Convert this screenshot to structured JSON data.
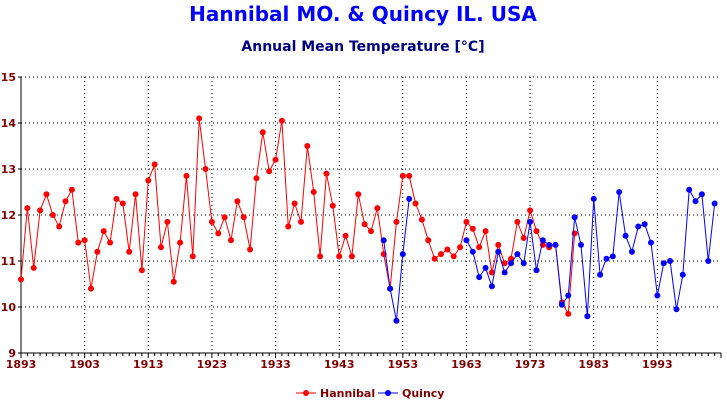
{
  "chart_data": {
    "type": "line",
    "title": "Hannibal MO. & Quincy IL. USA",
    "subtitle": "Annual Mean Temperature [°C]",
    "ylim": [
      9,
      15
    ],
    "yticks": [
      "9",
      "10",
      "11",
      "12",
      "13",
      "14",
      "15"
    ],
    "xlim": [
      1893,
      2003
    ],
    "xticks": [
      "1893",
      "1903",
      "1913",
      "1923",
      "1933",
      "1943",
      "1953",
      "1963",
      "1973",
      "1983",
      "1993"
    ],
    "grid": true,
    "legend_position": "bottom-center",
    "series": [
      {
        "name": "Hannibal",
        "color": "#ff0000",
        "x": [
          1893,
          1894,
          1895,
          1896,
          1897,
          1898,
          1899,
          1900,
          1901,
          1902,
          1903,
          1904,
          1905,
          1906,
          1907,
          1908,
          1909,
          1910,
          1911,
          1912,
          1913,
          1914,
          1915,
          1916,
          1917,
          1918,
          1919,
          1920,
          1921,
          1922,
          1923,
          1924,
          1925,
          1926,
          1927,
          1928,
          1929,
          1930,
          1931,
          1932,
          1933,
          1934,
          1935,
          1936,
          1937,
          1938,
          1939,
          1940,
          1941,
          1942,
          1943,
          1944,
          1945,
          1946,
          1947,
          1948,
          1949,
          1950,
          1951,
          1952,
          1953,
          1954,
          1955,
          1956,
          1957,
          1958,
          1959,
          1960,
          1961,
          1962,
          1963,
          1964,
          1965,
          1966,
          1967,
          1968,
          1969,
          1970,
          1971,
          1972,
          1973,
          1974,
          1975,
          1976,
          1977,
          1978,
          1979,
          1980
        ],
        "values": [
          10.6,
          12.15,
          10.85,
          12.1,
          12.45,
          12.0,
          11.75,
          12.3,
          12.55,
          11.4,
          11.45,
          10.4,
          11.2,
          11.65,
          11.4,
          12.35,
          12.25,
          11.2,
          12.45,
          10.8,
          12.75,
          13.1,
          11.3,
          11.85,
          10.55,
          11.4,
          12.85,
          11.1,
          14.1,
          13.0,
          11.85,
          11.6,
          11.95,
          11.45,
          12.3,
          11.95,
          11.25,
          12.8,
          13.8,
          12.95,
          13.2,
          14.05,
          11.75,
          12.25,
          11.85,
          13.5,
          12.5,
          11.1,
          12.9,
          12.2,
          11.1,
          11.55,
          11.1,
          12.45,
          11.8,
          11.65,
          12.15,
          11.15,
          10.4,
          11.85,
          12.85,
          12.85,
          12.25,
          11.9,
          11.45,
          11.05,
          11.15,
          11.25,
          11.1,
          11.3,
          11.85,
          11.7,
          11.3,
          11.65,
          10.75,
          11.35,
          10.95,
          11.05,
          11.85,
          11.5,
          12.1,
          11.65,
          11.35,
          11.3,
          11.35,
          10.1,
          9.85,
          11.6
        ]
      },
      {
        "name": "Quincy",
        "color": "#0000ff",
        "x": [
          1950,
          1951,
          1952,
          1953,
          1954,
          1963,
          1964,
          1965,
          1966,
          1967,
          1968,
          1969,
          1970,
          1971,
          1972,
          1973,
          1974,
          1975,
          1976,
          1977,
          1978,
          1979,
          1980,
          1981,
          1982,
          1983,
          1984,
          1985,
          1986,
          1987,
          1988,
          1989,
          1990,
          1991,
          1992,
          1993,
          1994,
          1995,
          1996,
          1997,
          1998,
          1999,
          2000,
          2001,
          2002
        ],
        "values": [
          11.45,
          10.4,
          9.7,
          11.15,
          12.35,
          11.45,
          11.2,
          10.65,
          10.85,
          10.45,
          11.2,
          10.75,
          10.95,
          11.15,
          10.95,
          11.85,
          10.8,
          11.45,
          11.35,
          11.35,
          10.05,
          10.25,
          11.95,
          11.35,
          9.8,
          12.35,
          10.7,
          11.05,
          11.1,
          12.5,
          11.55,
          11.2,
          11.75,
          11.8,
          11.4,
          10.25,
          10.95,
          11.0,
          9.95,
          10.7,
          12.55,
          12.3,
          12.45,
          11.0,
          12.25
        ]
      }
    ]
  }
}
